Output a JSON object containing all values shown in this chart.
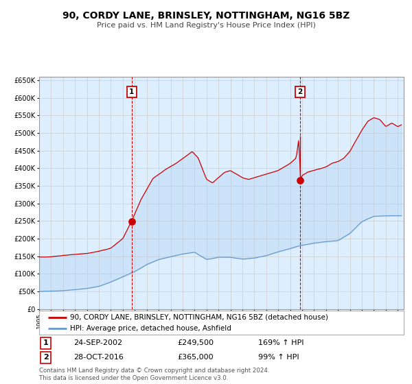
{
  "title": "90, CORDY LANE, BRINSLEY, NOTTINGHAM, NG16 5BZ",
  "subtitle": "Price paid vs. HM Land Registry's House Price Index (HPI)",
  "xmin": 1995.0,
  "xmax": 2025.5,
  "ymin": 0,
  "ymax": 660000,
  "yticks": [
    0,
    50000,
    100000,
    150000,
    200000,
    250000,
    300000,
    350000,
    400000,
    450000,
    500000,
    550000,
    600000,
    650000
  ],
  "sale1_x": 2002.73,
  "sale1_y": 249500,
  "sale1_label": "1",
  "sale1_date": "24-SEP-2002",
  "sale1_price": "£249,500",
  "sale1_hpi": "169% ↑ HPI",
  "sale2_x": 2016.83,
  "sale2_y": 365000,
  "sale2_label": "2",
  "sale2_date": "28-OCT-2016",
  "sale2_price": "£365,000",
  "sale2_hpi": "99% ↑ HPI",
  "legend_line1": "90, CORDY LANE, BRINSLEY, NOTTINGHAM, NG16 5BZ (detached house)",
  "legend_line2": "HPI: Average price, detached house, Ashfield",
  "footer": "Contains HM Land Registry data © Crown copyright and database right 2024.\nThis data is licensed under the Open Government Licence v3.0.",
  "red_color": "#cc0000",
  "blue_color": "#6699cc",
  "bg_color": "#ddeeff",
  "grid_color": "#cccccc"
}
